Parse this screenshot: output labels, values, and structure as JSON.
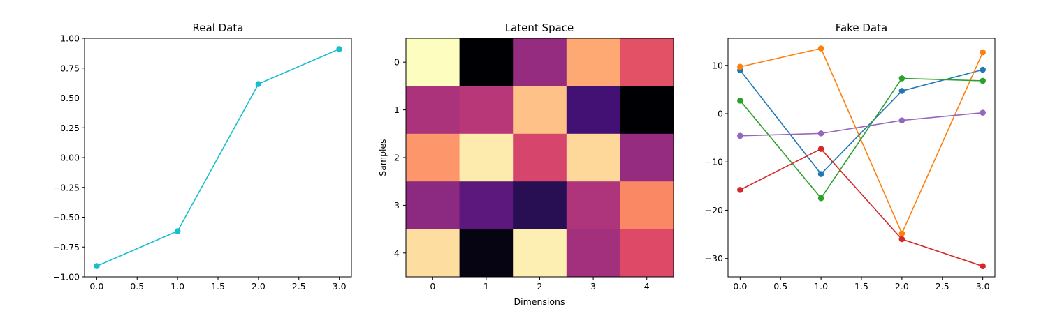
{
  "chart_data": [
    {
      "type": "line",
      "title": "Real Data",
      "xlabel": "",
      "ylabel": "",
      "xlim": [
        -0.15,
        3.15
      ],
      "ylim": [
        -1.0,
        1.0
      ],
      "xticks": [
        "0.0",
        "0.5",
        "1.0",
        "1.5",
        "2.0",
        "2.5",
        "3.0"
      ],
      "yticks": [
        "−1.00",
        "−0.75",
        "−0.50",
        "−0.25",
        "0.00",
        "0.25",
        "0.50",
        "0.75",
        "1.00"
      ],
      "grid": false,
      "x": [
        0,
        1,
        2,
        3
      ],
      "series": [
        {
          "values": [
            -0.91,
            -0.617,
            0.617,
            0.91
          ],
          "color": "#17becf",
          "marker": "circle"
        }
      ]
    },
    {
      "type": "heatmap",
      "title": "Latent Space",
      "xlabel": "Dimensions",
      "ylabel": "Samples",
      "colormap": "magma",
      "xticks": [
        "0",
        "1",
        "2",
        "3",
        "4"
      ],
      "yticks": [
        "0",
        "1",
        "2",
        "3",
        "4"
      ],
      "grid": false,
      "values": [
        [
          1.0,
          0.0,
          0.42,
          0.82,
          0.62
        ],
        [
          0.47,
          0.5,
          0.87,
          0.22,
          0.0
        ],
        [
          0.78,
          0.96,
          0.58,
          0.92,
          0.42
        ],
        [
          0.4,
          0.28,
          0.15,
          0.48,
          0.75
        ],
        [
          0.93,
          0.03,
          0.97,
          0.45,
          0.6
        ]
      ]
    },
    {
      "type": "line",
      "title": "Fake Data",
      "xlabel": "",
      "ylabel": "",
      "xlim": [
        -0.15,
        3.15
      ],
      "ylim": [
        -33.8,
        15.6
      ],
      "xticks": [
        "0.0",
        "0.5",
        "1.0",
        "1.5",
        "2.0",
        "2.5",
        "3.0"
      ],
      "yticks": [
        "−30",
        "−20",
        "−10",
        "0",
        "10"
      ],
      "grid": false,
      "x": [
        0,
        1,
        2,
        3
      ],
      "series": [
        {
          "values": [
            9.0,
            -12.5,
            4.7,
            9.1
          ],
          "color": "#1f77b4",
          "marker": "circle"
        },
        {
          "values": [
            9.7,
            13.5,
            -24.8,
            12.7
          ],
          "color": "#ff7f0e",
          "marker": "circle"
        },
        {
          "values": [
            2.7,
            -17.5,
            7.3,
            6.8
          ],
          "color": "#2ca02c",
          "marker": "circle"
        },
        {
          "values": [
            -15.8,
            -7.3,
            -26.0,
            -31.6
          ],
          "color": "#d62728",
          "marker": "circle"
        },
        {
          "values": [
            -4.6,
            -4.1,
            -1.4,
            0.2
          ],
          "color": "#9467bd",
          "marker": "circle"
        }
      ]
    }
  ]
}
